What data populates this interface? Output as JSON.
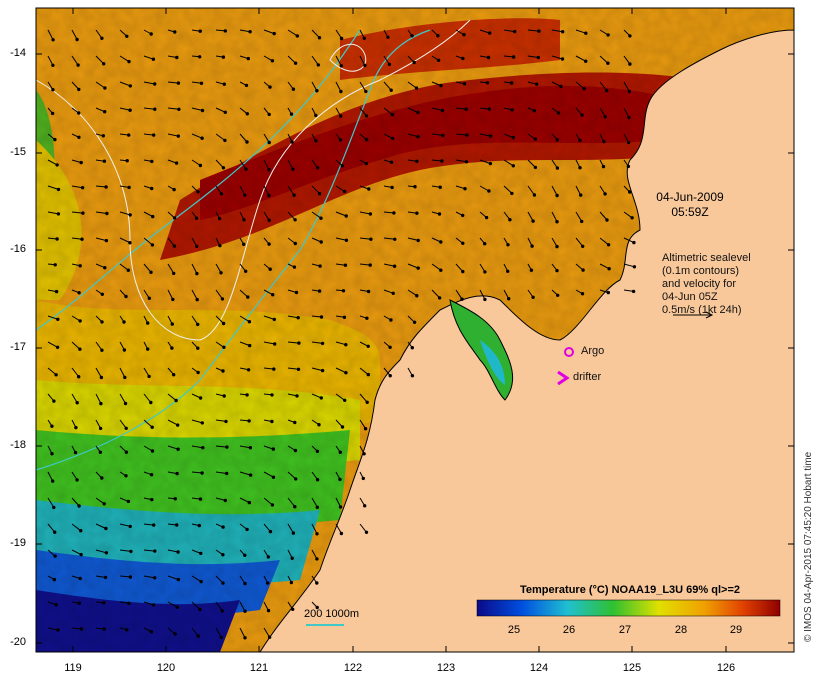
{
  "map": {
    "title_date": "04-Jun-2009",
    "title_time": "05:59Z",
    "legend_text": [
      "Altimetric sealevel",
      "(0.1m contours)",
      "and velocity for",
      "04-Jun 05Z",
      "0.5m/s (1kt 24h)"
    ],
    "argo_label": "Argo",
    "drifter_label": "drifter",
    "drifter_symbol": ">",
    "isobath_label": "200  1000m",
    "colorbar_title": "Temperature (°C) NOAA19_L3U 69% ql>=2",
    "colorbar_ticks": [
      "25",
      "26",
      "27",
      "28",
      "29"
    ],
    "credit": "© IMOS 04-Apr-2015 07:45:20 Hobart time",
    "lat_ticks": [
      "-14",
      "-15",
      "-16",
      "-17",
      "-18",
      "-19",
      "-20"
    ],
    "lon_ticks": [
      "119",
      "120",
      "121",
      "122",
      "123",
      "124",
      "125",
      "126"
    ],
    "colors": {
      "land": "#f8c89a",
      "warm": "#9a0000",
      "hot": "#cc2000",
      "orange": "#e88000",
      "yellow": "#e8d800",
      "green": "#30c020",
      "cyan": "#20b8c8",
      "blue": "#1060d8",
      "navy": "#10108a",
      "argo": "#e000e0",
      "isobath": "#40c8c8"
    }
  }
}
